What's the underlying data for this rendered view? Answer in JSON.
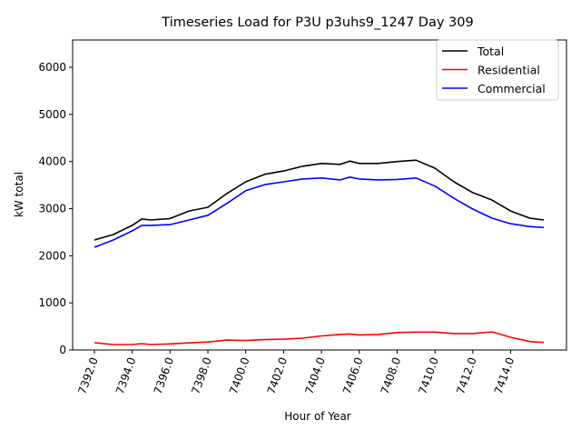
{
  "chart_data": {
    "type": "line",
    "title": "Timeseries Load for P3U p3uhs9_1247  Day 309",
    "xlabel": "Hour of Year",
    "ylabel": "kW total",
    "xlim": [
      7390.85,
      7416.95
    ],
    "ylim": [
      0,
      6580
    ],
    "xticks": [
      7392,
      7394,
      7396,
      7398,
      7400,
      7402,
      7404,
      7406,
      7408,
      7410,
      7412,
      7414
    ],
    "xtick_labels": [
      "7392.0",
      "7394.0",
      "7396.0",
      "7398.0",
      "7400.0",
      "7402.0",
      "7404.0",
      "7406.0",
      "7408.0",
      "7410.0",
      "7412.0",
      "7414.0"
    ],
    "yticks": [
      0,
      1000,
      2000,
      3000,
      4000,
      5000,
      6000
    ],
    "ytick_labels": [
      "0",
      "1000",
      "2000",
      "3000",
      "4000",
      "5000",
      "6000"
    ],
    "grid": false,
    "legend_position": "top-right",
    "x": [
      7392,
      7393,
      7394,
      7394.5,
      7395,
      7396,
      7397,
      7398,
      7399,
      7400,
      7401,
      7402,
      7403,
      7404,
      7405,
      7405.5,
      7406,
      7407,
      7408,
      7409,
      7410,
      7411,
      7412,
      7413,
      7414,
      7415,
      7415.75
    ],
    "series": [
      {
        "name": "Total",
        "color": "#000000",
        "values": [
          2335,
          2450,
          2645,
          2780,
          2760,
          2790,
          2950,
          3030,
          3320,
          3570,
          3730,
          3800,
          3900,
          3960,
          3940,
          4010,
          3960,
          3960,
          4000,
          4030,
          3860,
          3570,
          3340,
          3185,
          2950,
          2800,
          2760
        ]
      },
      {
        "name": "Residential",
        "color": "#ff0000",
        "values": [
          155,
          115,
          115,
          135,
          115,
          130,
          150,
          170,
          210,
          200,
          220,
          230,
          250,
          300,
          330,
          340,
          320,
          330,
          370,
          380,
          380,
          350,
          350,
          385,
          270,
          180,
          160
        ]
      },
      {
        "name": "Commercial",
        "color": "#0000ff",
        "values": [
          2180,
          2335,
          2530,
          2645,
          2645,
          2660,
          2760,
          2860,
          3110,
          3380,
          3510,
          3570,
          3630,
          3650,
          3610,
          3670,
          3630,
          3610,
          3620,
          3650,
          3480,
          3220,
          2990,
          2800,
          2680,
          2620,
          2600
        ]
      }
    ]
  }
}
